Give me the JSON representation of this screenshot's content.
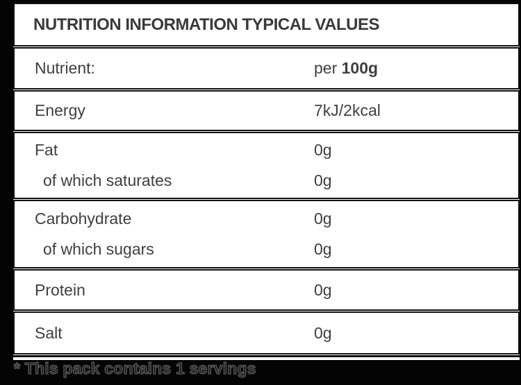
{
  "label": {
    "title": "NUTRITION INFORMATION TYPICAL VALUES",
    "header_row": {
      "name": "Nutrient:",
      "value_prefix": "per",
      "value_bold": "100g"
    },
    "rows": [
      {
        "name": "Energy",
        "value": "7kJ/2kcal"
      },
      {
        "name": "Fat",
        "value": "0g"
      },
      {
        "name": "of which saturates",
        "value": "0g"
      },
      {
        "name": "Carbohydrate",
        "value": "0g"
      },
      {
        "name": "of which sugars",
        "value": "0g"
      },
      {
        "name": "Protein",
        "value": "0g"
      },
      {
        "name": "Salt",
        "value": "0g"
      }
    ],
    "footnote": "* This pack contains 1 servings",
    "colors": {
      "background": "#040404",
      "card": "#ffffff",
      "border": "#101010",
      "text": "#3f3f3f"
    }
  }
}
